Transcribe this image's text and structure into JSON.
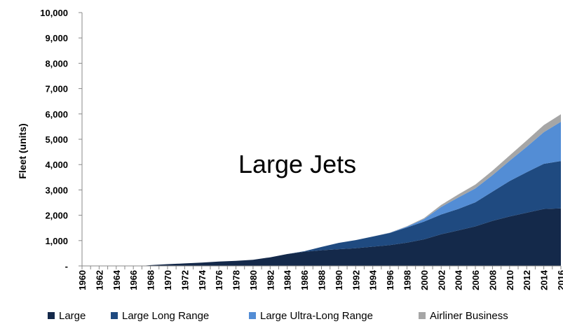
{
  "chart_data": {
    "type": "area",
    "stacked": true,
    "ylabel": "Fleet (units)",
    "annotation": "Large Jets",
    "ylim": [
      0,
      10000
    ],
    "xlim": [
      1960,
      2016
    ],
    "y_ticks": [
      0,
      1000,
      2000,
      3000,
      4000,
      5000,
      6000,
      7000,
      8000,
      9000,
      10000
    ],
    "y_tick_labels": [
      "-",
      "1,000",
      "2,000",
      "3,000",
      "4,000",
      "5,000",
      "6,000",
      "7,000",
      "8,000",
      "9,000",
      "10,000"
    ],
    "x_ticks": [
      1960,
      1962,
      1964,
      1966,
      1968,
      1970,
      1972,
      1974,
      1976,
      1978,
      1980,
      1982,
      1984,
      1986,
      1988,
      1990,
      1992,
      1994,
      1996,
      1998,
      2000,
      2002,
      2004,
      2006,
      2008,
      2010,
      2012,
      2014,
      2016
    ],
    "x_tick_labels": [
      "1960",
      "1962",
      "1964",
      "1966",
      "1968",
      "1970",
      "1972",
      "1974",
      "1976",
      "1978",
      "1980",
      "1982",
      "1984",
      "1986",
      "1988",
      "1990",
      "1992",
      "1994",
      "1996",
      "1998",
      "2000",
      "2002",
      "2004",
      "2006",
      "2008",
      "2010",
      "2012",
      "2014",
      "2016"
    ],
    "grid": false,
    "legend_position": "bottom",
    "x": [
      1960,
      1966,
      1967,
      1968,
      1970,
      1972,
      1974,
      1976,
      1978,
      1980,
      1982,
      1984,
      1986,
      1988,
      1990,
      1992,
      1994,
      1996,
      1998,
      2000,
      2002,
      2004,
      2006,
      2008,
      2010,
      2012,
      2014,
      2016
    ],
    "series": [
      {
        "name": "Large",
        "color": "#14294a",
        "values": [
          0,
          0,
          0,
          30,
          70,
          100,
          130,
          170,
          200,
          240,
          340,
          470,
          560,
          620,
          660,
          700,
          760,
          820,
          920,
          1050,
          1250,
          1400,
          1560,
          1780,
          1950,
          2100,
          2250,
          2270
        ]
      },
      {
        "name": "Large Long Range",
        "color": "#1f4a80",
        "values": [
          0,
          0,
          0,
          0,
          0,
          0,
          0,
          0,
          0,
          0,
          0,
          0,
          20,
          130,
          250,
          320,
          400,
          480,
          600,
          700,
          780,
          850,
          950,
          1150,
          1400,
          1600,
          1780,
          1870
        ]
      },
      {
        "name": "Large Ultra-Long Range",
        "color": "#538dd5",
        "values": [
          0,
          0,
          0,
          0,
          0,
          0,
          0,
          0,
          0,
          0,
          0,
          0,
          0,
          0,
          0,
          0,
          0,
          10,
          30,
          100,
          300,
          450,
          550,
          650,
          800,
          1000,
          1250,
          1550
        ]
      },
      {
        "name": "Airliner Business",
        "color": "#a6a6a6",
        "values": [
          0,
          0,
          0,
          0,
          0,
          0,
          0,
          0,
          0,
          0,
          0,
          0,
          0,
          0,
          0,
          0,
          0,
          5,
          20,
          40,
          80,
          120,
          150,
          180,
          210,
          250,
          280,
          300
        ]
      }
    ]
  }
}
